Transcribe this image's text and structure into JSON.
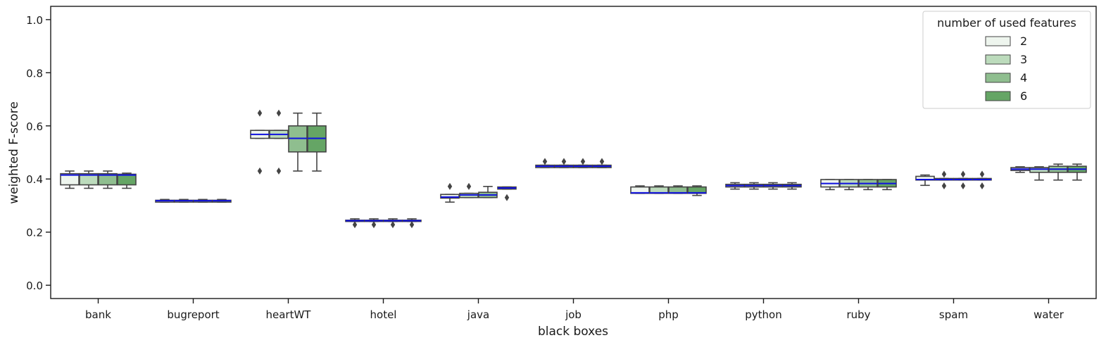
{
  "chart_data": {
    "type": "box",
    "xlabel": "black boxes",
    "ylabel": "weighted F-score",
    "ylim": [
      -0.05,
      1.05
    ],
    "yticks": [
      "0.0",
      "0.2",
      "0.4",
      "0.6",
      "0.8",
      "1.0"
    ],
    "grid": false,
    "categories": [
      "bank",
      "bugreport",
      "heartWT",
      "hotel",
      "java",
      "job",
      "php",
      "python",
      "ruby",
      "spam",
      "water"
    ],
    "legend": {
      "title": "number of used features",
      "position": "top-right",
      "entries": [
        "2",
        "3",
        "4",
        "6"
      ]
    },
    "series_colors": [
      "#eef5ee",
      "#bcdbbc",
      "#8fbe8f",
      "#65a565"
    ],
    "median_color": "#1010e0",
    "series": [
      {
        "name": "2",
        "boxes": [
          {
            "whislo": 0.365,
            "q1": 0.378,
            "med": 0.415,
            "q3": 0.42,
            "whishi": 0.43,
            "fliers": []
          },
          {
            "whislo": 0.313,
            "q1": 0.313,
            "med": 0.318,
            "q3": 0.32,
            "whishi": 0.323,
            "fliers": []
          },
          {
            "whislo": 0.553,
            "q1": 0.553,
            "med": 0.568,
            "q3": 0.583,
            "whishi": 0.583,
            "fliers": [
              0.43,
              0.648
            ]
          },
          {
            "whislo": 0.24,
            "q1": 0.24,
            "med": 0.243,
            "q3": 0.245,
            "whishi": 0.25,
            "fliers": [
              0.228
            ]
          },
          {
            "whislo": 0.313,
            "q1": 0.328,
            "med": 0.332,
            "q3": 0.342,
            "whishi": 0.342,
            "fliers": [
              0.372
            ]
          },
          {
            "whislo": 0.443,
            "q1": 0.443,
            "med": 0.448,
            "q3": 0.452,
            "whishi": 0.452,
            "fliers": [
              0.466
            ]
          },
          {
            "whislo": 0.346,
            "q1": 0.346,
            "med": 0.348,
            "q3": 0.37,
            "whishi": 0.374,
            "fliers": []
          },
          {
            "whislo": 0.362,
            "q1": 0.37,
            "med": 0.375,
            "q3": 0.38,
            "whishi": 0.386,
            "fliers": []
          },
          {
            "whislo": 0.36,
            "q1": 0.37,
            "med": 0.383,
            "q3": 0.398,
            "whishi": 0.398,
            "fliers": []
          },
          {
            "whislo": 0.376,
            "q1": 0.396,
            "med": 0.398,
            "q3": 0.41,
            "whishi": 0.415,
            "fliers": []
          },
          {
            "whislo": 0.425,
            "q1": 0.432,
            "med": 0.437,
            "q3": 0.443,
            "whishi": 0.446,
            "fliers": []
          }
        ]
      },
      {
        "name": "3",
        "boxes": [
          {
            "whislo": 0.365,
            "q1": 0.378,
            "med": 0.415,
            "q3": 0.42,
            "whishi": 0.43,
            "fliers": []
          },
          {
            "whislo": 0.313,
            "q1": 0.313,
            "med": 0.318,
            "q3": 0.32,
            "whishi": 0.323,
            "fliers": []
          },
          {
            "whislo": 0.553,
            "q1": 0.553,
            "med": 0.568,
            "q3": 0.583,
            "whishi": 0.583,
            "fliers": [
              0.43,
              0.648
            ]
          },
          {
            "whislo": 0.24,
            "q1": 0.24,
            "med": 0.243,
            "q3": 0.245,
            "whishi": 0.25,
            "fliers": [
              0.228
            ]
          },
          {
            "whislo": 0.33,
            "q1": 0.33,
            "med": 0.34,
            "q3": 0.346,
            "whishi": 0.346,
            "fliers": [
              0.372
            ]
          },
          {
            "whislo": 0.443,
            "q1": 0.443,
            "med": 0.448,
            "q3": 0.452,
            "whishi": 0.452,
            "fliers": [
              0.466
            ]
          },
          {
            "whislo": 0.346,
            "q1": 0.346,
            "med": 0.348,
            "q3": 0.37,
            "whishi": 0.374,
            "fliers": []
          },
          {
            "whislo": 0.362,
            "q1": 0.37,
            "med": 0.375,
            "q3": 0.38,
            "whishi": 0.386,
            "fliers": []
          },
          {
            "whislo": 0.36,
            "q1": 0.37,
            "med": 0.383,
            "q3": 0.398,
            "whishi": 0.398,
            "fliers": []
          },
          {
            "whislo": 0.396,
            "q1": 0.396,
            "med": 0.398,
            "q3": 0.402,
            "whishi": 0.402,
            "fliers": [
              0.374,
              0.418
            ]
          },
          {
            "whislo": 0.396,
            "q1": 0.425,
            "med": 0.437,
            "q3": 0.443,
            "whishi": 0.446,
            "fliers": []
          }
        ]
      },
      {
        "name": "4",
        "boxes": [
          {
            "whislo": 0.365,
            "q1": 0.378,
            "med": 0.415,
            "q3": 0.42,
            "whishi": 0.43,
            "fliers": []
          },
          {
            "whislo": 0.313,
            "q1": 0.313,
            "med": 0.318,
            "q3": 0.32,
            "whishi": 0.323,
            "fliers": []
          },
          {
            "whislo": 0.43,
            "q1": 0.502,
            "med": 0.553,
            "q3": 0.6,
            "whishi": 0.648,
            "fliers": []
          },
          {
            "whislo": 0.24,
            "q1": 0.24,
            "med": 0.243,
            "q3": 0.245,
            "whishi": 0.25,
            "fliers": [
              0.228
            ]
          },
          {
            "whislo": 0.33,
            "q1": 0.33,
            "med": 0.34,
            "q3": 0.35,
            "whishi": 0.372,
            "fliers": []
          },
          {
            "whislo": 0.443,
            "q1": 0.443,
            "med": 0.448,
            "q3": 0.452,
            "whishi": 0.452,
            "fliers": [
              0.466
            ]
          },
          {
            "whislo": 0.346,
            "q1": 0.346,
            "med": 0.348,
            "q3": 0.37,
            "whishi": 0.374,
            "fliers": []
          },
          {
            "whislo": 0.362,
            "q1": 0.37,
            "med": 0.375,
            "q3": 0.38,
            "whishi": 0.386,
            "fliers": []
          },
          {
            "whislo": 0.36,
            "q1": 0.37,
            "med": 0.383,
            "q3": 0.398,
            "whishi": 0.398,
            "fliers": []
          },
          {
            "whislo": 0.396,
            "q1": 0.396,
            "med": 0.398,
            "q3": 0.402,
            "whishi": 0.402,
            "fliers": [
              0.374,
              0.418
            ]
          },
          {
            "whislo": 0.396,
            "q1": 0.425,
            "med": 0.437,
            "q3": 0.448,
            "whishi": 0.456,
            "fliers": []
          }
        ]
      },
      {
        "name": "6",
        "boxes": [
          {
            "whislo": 0.365,
            "q1": 0.378,
            "med": 0.415,
            "q3": 0.418,
            "whishi": 0.422,
            "fliers": []
          },
          {
            "whislo": 0.313,
            "q1": 0.313,
            "med": 0.318,
            "q3": 0.32,
            "whishi": 0.323,
            "fliers": []
          },
          {
            "whislo": 0.43,
            "q1": 0.502,
            "med": 0.553,
            "q3": 0.6,
            "whishi": 0.648,
            "fliers": []
          },
          {
            "whislo": 0.24,
            "q1": 0.24,
            "med": 0.243,
            "q3": 0.245,
            "whishi": 0.25,
            "fliers": [
              0.228
            ]
          },
          {
            "whislo": 0.362,
            "q1": 0.362,
            "med": 0.366,
            "q3": 0.37,
            "whishi": 0.37,
            "fliers": [
              0.33
            ]
          },
          {
            "whislo": 0.443,
            "q1": 0.443,
            "med": 0.448,
            "q3": 0.452,
            "whishi": 0.452,
            "fliers": [
              0.466
            ]
          },
          {
            "whislo": 0.338,
            "q1": 0.346,
            "med": 0.348,
            "q3": 0.37,
            "whishi": 0.374,
            "fliers": []
          },
          {
            "whislo": 0.362,
            "q1": 0.37,
            "med": 0.375,
            "q3": 0.38,
            "whishi": 0.386,
            "fliers": []
          },
          {
            "whislo": 0.36,
            "q1": 0.37,
            "med": 0.383,
            "q3": 0.398,
            "whishi": 0.398,
            "fliers": []
          },
          {
            "whislo": 0.396,
            "q1": 0.396,
            "med": 0.398,
            "q3": 0.402,
            "whishi": 0.402,
            "fliers": [
              0.374,
              0.418
            ]
          },
          {
            "whislo": 0.396,
            "q1": 0.425,
            "med": 0.437,
            "q3": 0.448,
            "whishi": 0.456,
            "fliers": []
          }
        ]
      }
    ]
  }
}
